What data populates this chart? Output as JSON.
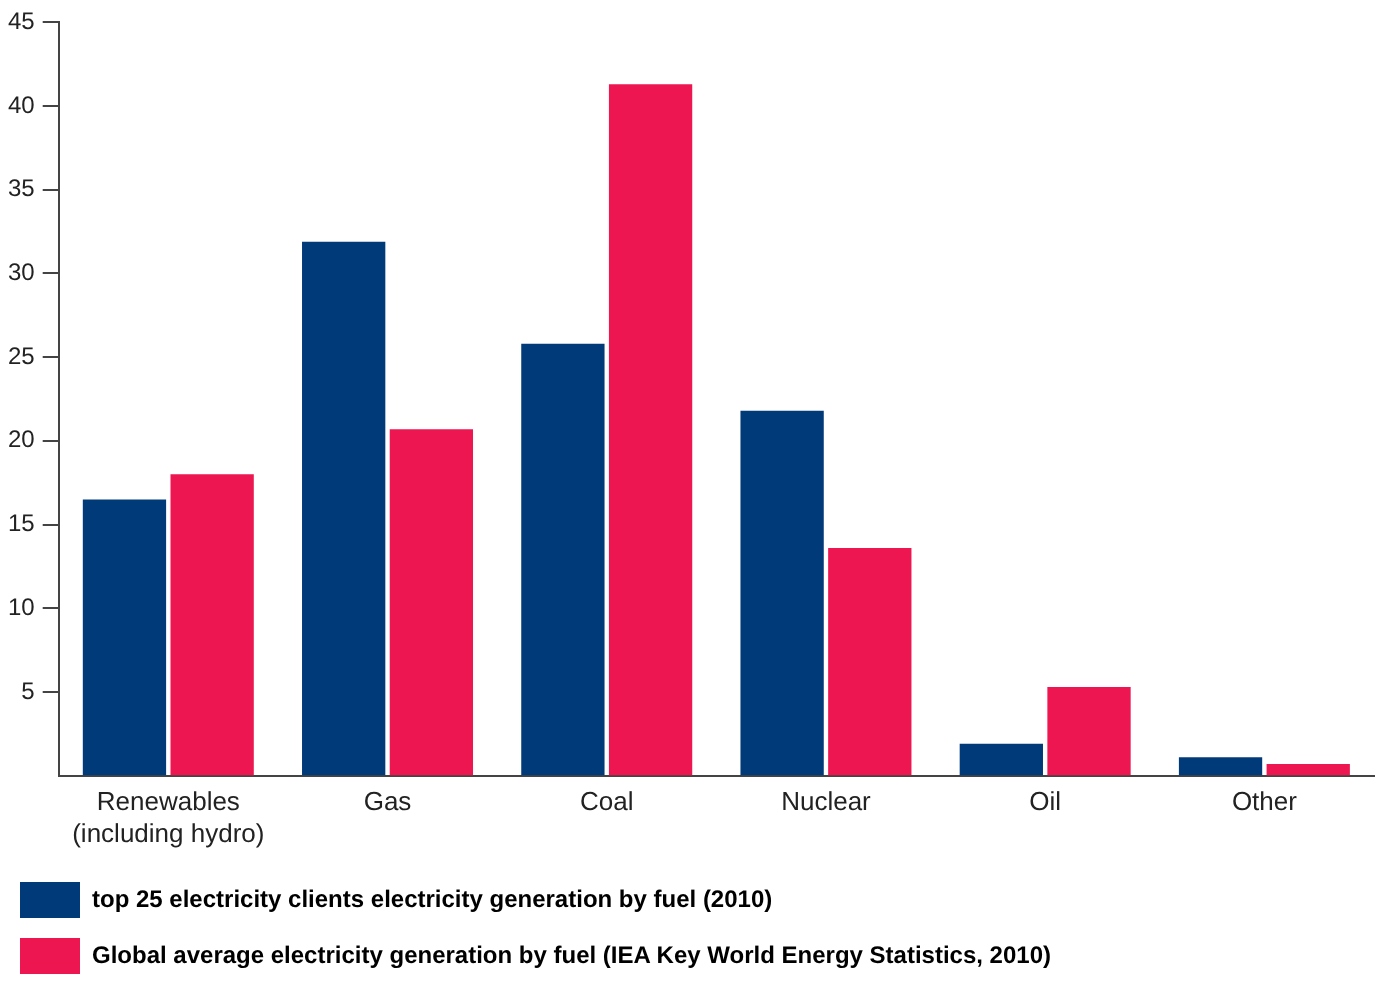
{
  "chart_data": {
    "type": "bar",
    "categories": [
      "Renewables (including hydro)",
      "Gas",
      "Coal",
      "Nuclear",
      "Oil",
      "Other"
    ],
    "series": [
      {
        "name": "top 25 electricity clients electricity generation by fuel (2010)",
        "color": "#003a78",
        "values": [
          16.5,
          31.9,
          25.8,
          21.8,
          1.9,
          1.1
        ]
      },
      {
        "name": "Global average electricity generation by fuel (IEA Key World Energy Statistics, 2010)",
        "color": "#ee1651",
        "values": [
          18,
          20.7,
          41.3,
          13.6,
          5.3,
          0.7
        ]
      }
    ],
    "ylim": [
      0,
      45
    ],
    "yticks": [
      5,
      10,
      15,
      20,
      25,
      30,
      35,
      40,
      45
    ],
    "grid": false,
    "legend": "bottom"
  }
}
